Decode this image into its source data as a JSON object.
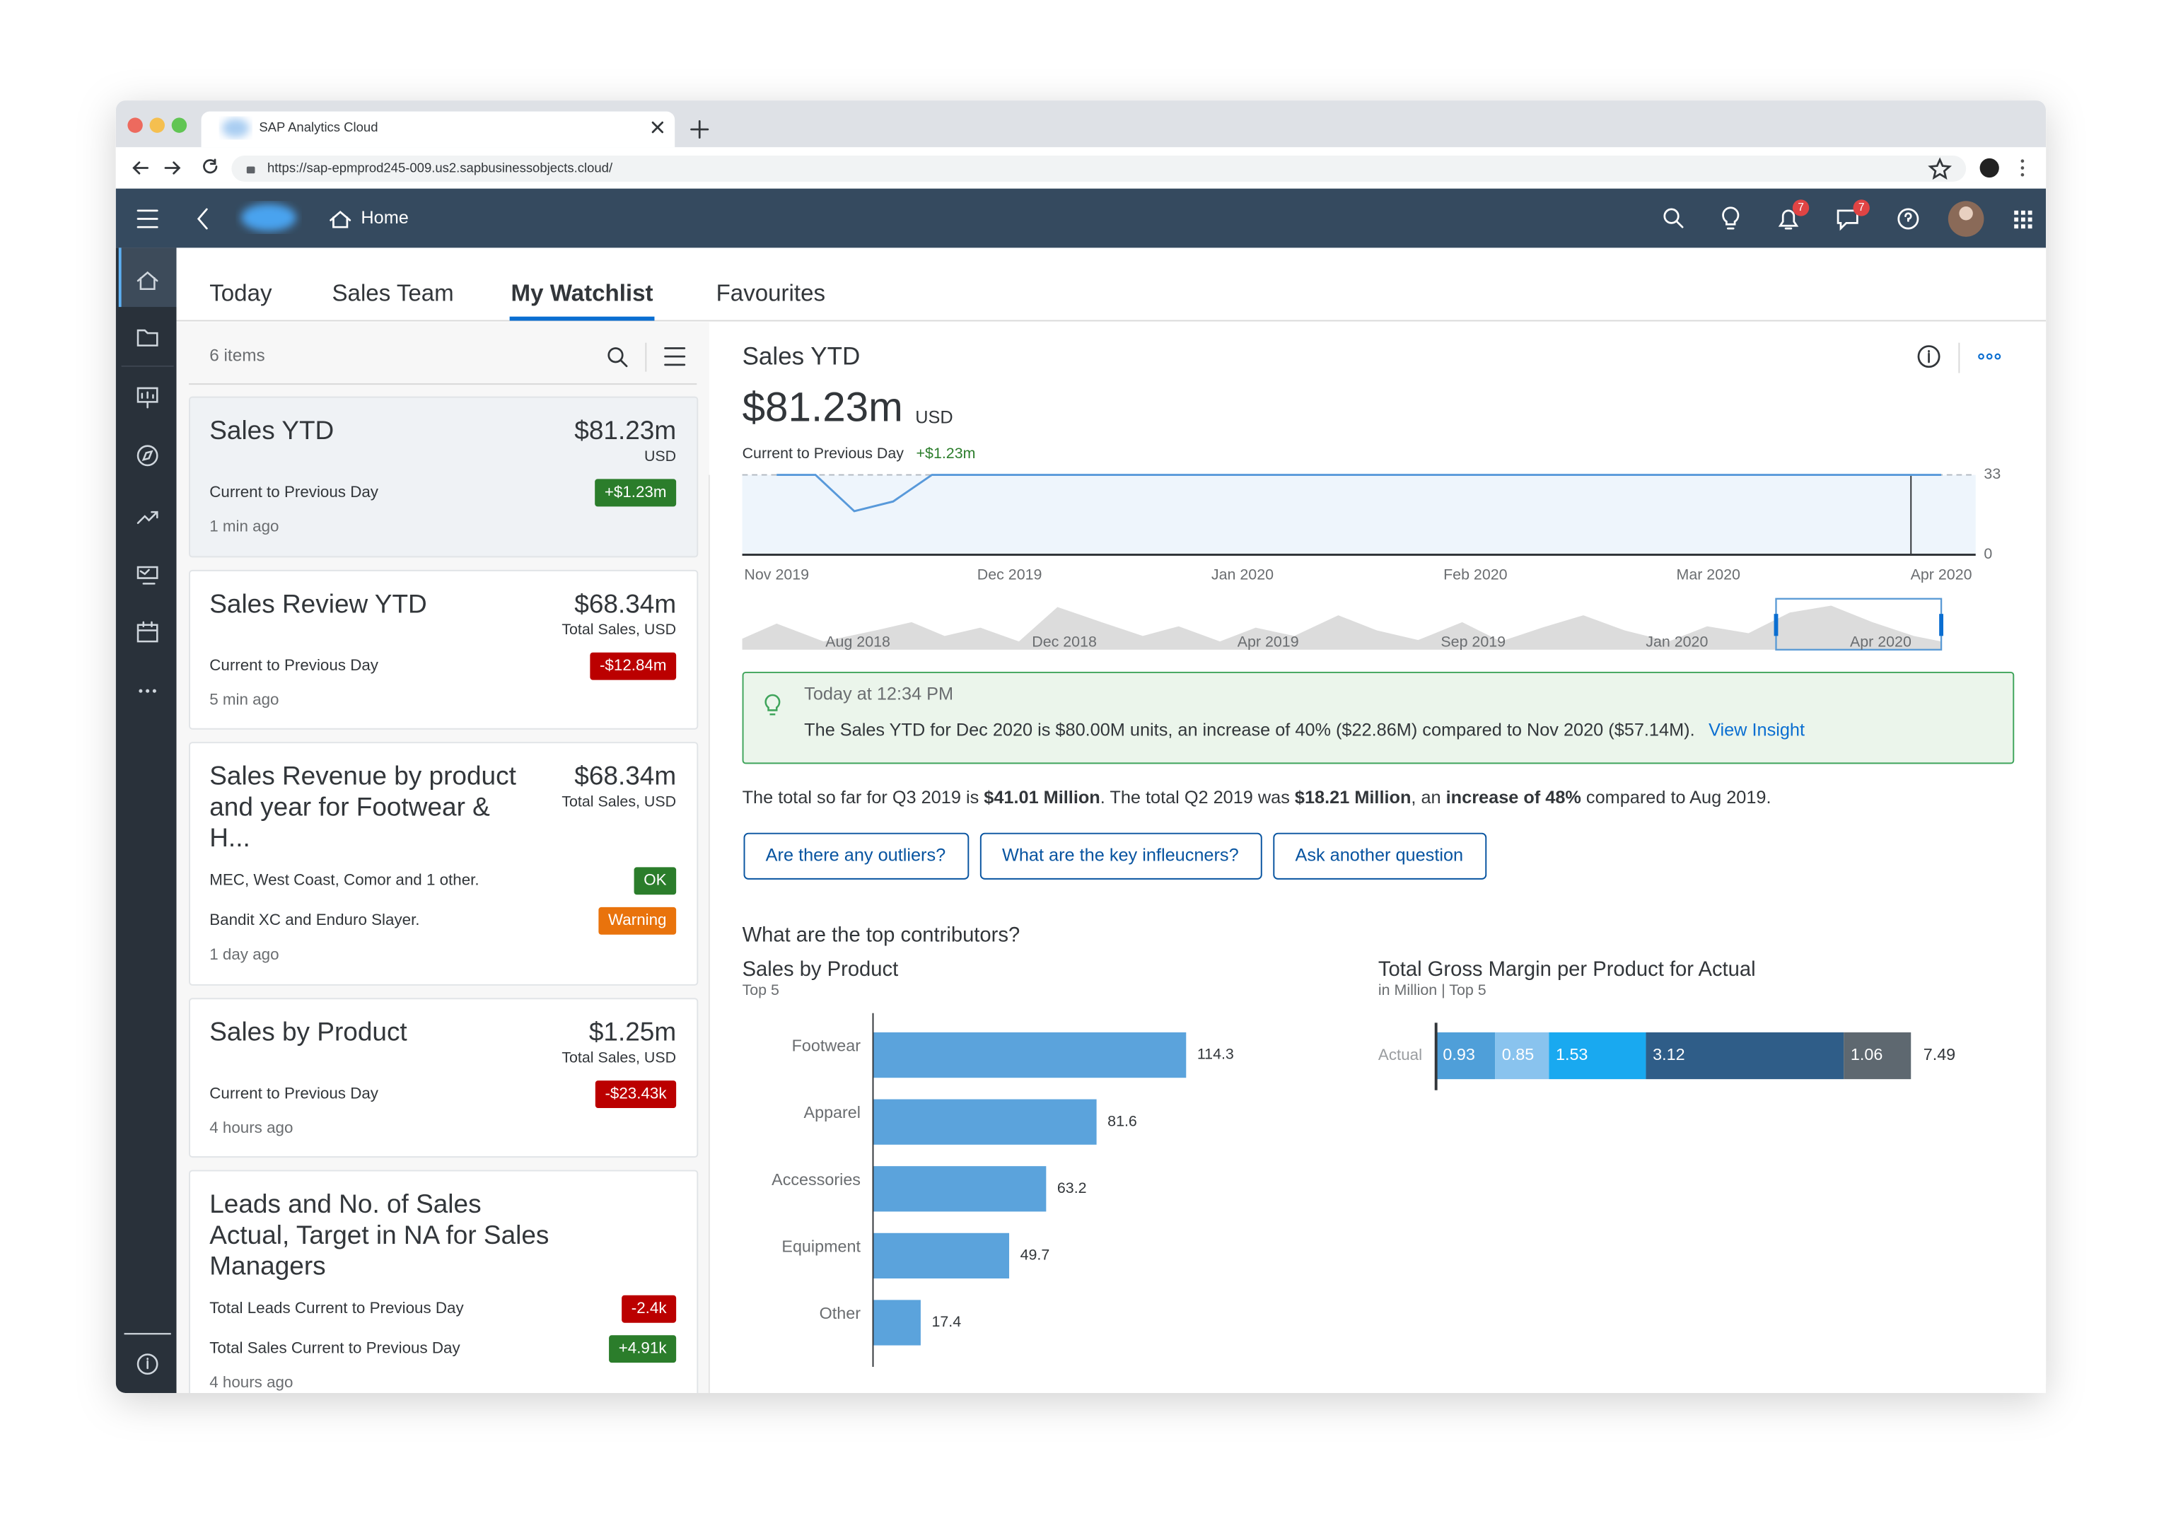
{
  "browser": {
    "tab_title": "SAP Analytics Cloud",
    "url": "https://sap-epmprod245-009.us2.sapbusinessobjects.cloud/"
  },
  "shell": {
    "home": "Home",
    "notifications": "7",
    "messages": "7"
  },
  "tabs": [
    {
      "label": "Today"
    },
    {
      "label": "Sales Team"
    },
    {
      "label": "My Watchlist",
      "selected": true
    },
    {
      "label": "Favourites"
    }
  ],
  "watchlist": {
    "count": "6 items",
    "items": [
      {
        "title": [
          "Sales YTD"
        ],
        "value": "$81.23m",
        "unit": "USD",
        "selected": true,
        "rows": [
          {
            "label": "Current to Previous Day",
            "badge": "+$1.23m",
            "status": "positive"
          }
        ],
        "time": "1 min ago"
      },
      {
        "title": [
          "Sales Review YTD"
        ],
        "value": "$68.34m",
        "unit": "Total Sales, USD",
        "rows": [
          {
            "label": "Current to Previous Day",
            "badge": "-$12.84m",
            "status": "negative"
          }
        ],
        "time": "5 min ago"
      },
      {
        "title": [
          "Sales Revenue by product",
          "and year for Footwear &",
          "H..."
        ],
        "value": "$68.34m",
        "unit": "Total Sales, USD",
        "rows": [
          {
            "label": "MEC, West Coast, Comor and 1 other.",
            "badge": "OK",
            "status": "positive"
          },
          {
            "label": "Bandit XC and Enduro Slayer.",
            "badge": "Warning",
            "status": "warning"
          }
        ],
        "time": "1 day ago"
      },
      {
        "title": [
          "Sales by Product"
        ],
        "value": "$1.25m",
        "unit": "Total Sales, USD",
        "rows": [
          {
            "label": "Current to Previous Day",
            "badge": "-$23.43k",
            "status": "negative"
          }
        ],
        "time": "4 hours ago"
      },
      {
        "title": [
          "Leads and No. of Sales",
          "Actual, Target in NA for Sales",
          "Managers"
        ],
        "rows": [
          {
            "label": "Total Leads Current to Previous Day",
            "badge": "-2.4k",
            "status": "negative"
          },
          {
            "label": "Total Sales Current to Previous Day",
            "badge": "+4.91k",
            "status": "positive"
          }
        ],
        "time": "4 hours ago"
      }
    ]
  },
  "detail": {
    "title": "Sales YTD",
    "value": "$81.23m",
    "unit": "USD",
    "comparison_label": "Current to Previous Day",
    "comparison_value": "+$1.23m",
    "navigator_labels": [
      "Aug 2018",
      "Dec 2018",
      "Apr 2019",
      "Sep 2019",
      "Jan 2020",
      "Apr 2020"
    ],
    "insight": {
      "time": "Today at 12:34 PM",
      "text": "The Sales YTD for Dec 2020 is $80.00M units, an increase of 40% ($22.86M) compared to Nov 2020 ($57.14M).",
      "link": "View Insight"
    },
    "summary": [
      {
        "text": "The total so far for Q3 2019 is "
      },
      {
        "text": "$41.01 Million",
        "bold": true
      },
      {
        "text": ". The total Q2 2019 was "
      },
      {
        "text": "$18.21 Million",
        "bold": true
      },
      {
        "text": ", an "
      },
      {
        "text": "increase of 48%",
        "bold": true
      },
      {
        "text": " compared to Aug 2019."
      }
    ],
    "questions": [
      "Are there any outliers?",
      "What are the key infleucners?",
      "Ask another question"
    ],
    "contributors_heading": "What are the top contributors?"
  },
  "chart_data": [
    {
      "type": "line",
      "color": "#5899da",
      "categories": [
        "Nov 2019",
        null,
        null,
        null,
        null,
        null,
        "Dec 2019",
        null,
        null,
        null,
        null,
        null,
        "Jan 2020",
        null,
        null,
        null,
        null,
        null,
        "Feb 2020",
        null,
        null,
        null,
        null,
        null,
        "Mar 2020",
        null,
        null,
        null,
        null,
        null,
        "Apr 2020"
      ],
      "values": [
        33,
        33,
        18,
        22,
        33,
        33,
        33,
        33,
        33,
        33,
        33,
        33,
        33,
        33,
        33,
        33,
        33,
        33,
        33,
        33,
        33,
        33,
        33,
        33,
        33,
        33,
        33,
        33,
        33,
        33,
        33
      ],
      "ylim": [
        0,
        33
      ],
      "yticks": [
        0,
        33
      ]
    },
    {
      "type": "hbar",
      "title": "Sales by Product",
      "subtitle": "Top 5",
      "color": "#5ba3dc",
      "categories": [
        "Footwear",
        "Apparel",
        "Accessories",
        "Equipment",
        "Other"
      ],
      "values": [
        114.3,
        81.6,
        63.2,
        49.7,
        17.4
      ]
    },
    {
      "type": "stacked-hbar",
      "title": "Total Gross Margin per Product for Actual",
      "subtitle": "in Million | Top 5",
      "categories": [
        "Actual"
      ],
      "total": 7.49,
      "series": [
        {
          "color": "#4f9fd9",
          "values": [
            0.93
          ]
        },
        {
          "color": "#89c3ee",
          "values": [
            0.85
          ]
        },
        {
          "color": "#19a9f0",
          "values": [
            1.53
          ]
        },
        {
          "color": "#2f5d88",
          "values": [
            3.12
          ]
        },
        {
          "color": "#5e6870",
          "values": [
            1.06
          ]
        }
      ]
    }
  ]
}
